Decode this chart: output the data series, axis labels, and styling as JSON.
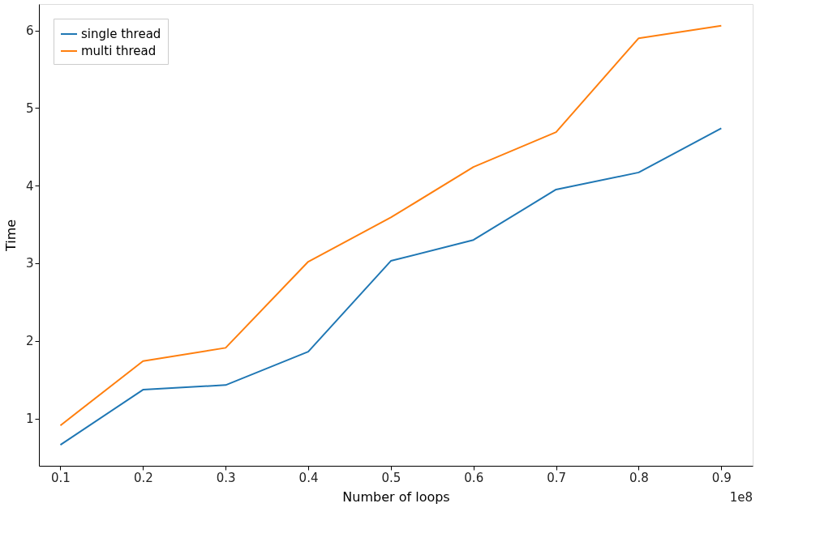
{
  "chart_data": {
    "type": "line",
    "xlabel": "Number of loops",
    "ylabel": "Time",
    "annotations": [
      "1e8"
    ],
    "x": [
      0.1,
      0.2,
      0.3,
      0.4,
      0.5,
      0.6,
      0.7,
      0.8,
      0.9
    ],
    "series": [
      {
        "name": "single thread",
        "color": "#1f77b4",
        "values": [
          0.66,
          1.37,
          1.43,
          1.86,
          3.03,
          3.3,
          3.95,
          4.17,
          4.74
        ]
      },
      {
        "name": "multi thread",
        "color": "#ff7f0e",
        "values": [
          0.91,
          1.74,
          1.91,
          3.02,
          3.59,
          4.24,
          4.69,
          5.9,
          6.06
        ]
      }
    ],
    "xlim": [
      0.074,
      0.938
    ],
    "ylim": [
      0.39,
      6.34
    ],
    "xticks": [
      0.1,
      0.2,
      0.3,
      0.4,
      0.5,
      0.6,
      0.7,
      0.8,
      0.9
    ],
    "yticks": [
      1,
      2,
      3,
      4,
      5,
      6
    ],
    "grid": false,
    "legend": "top left",
    "marker": "none",
    "line_style": "solid"
  }
}
